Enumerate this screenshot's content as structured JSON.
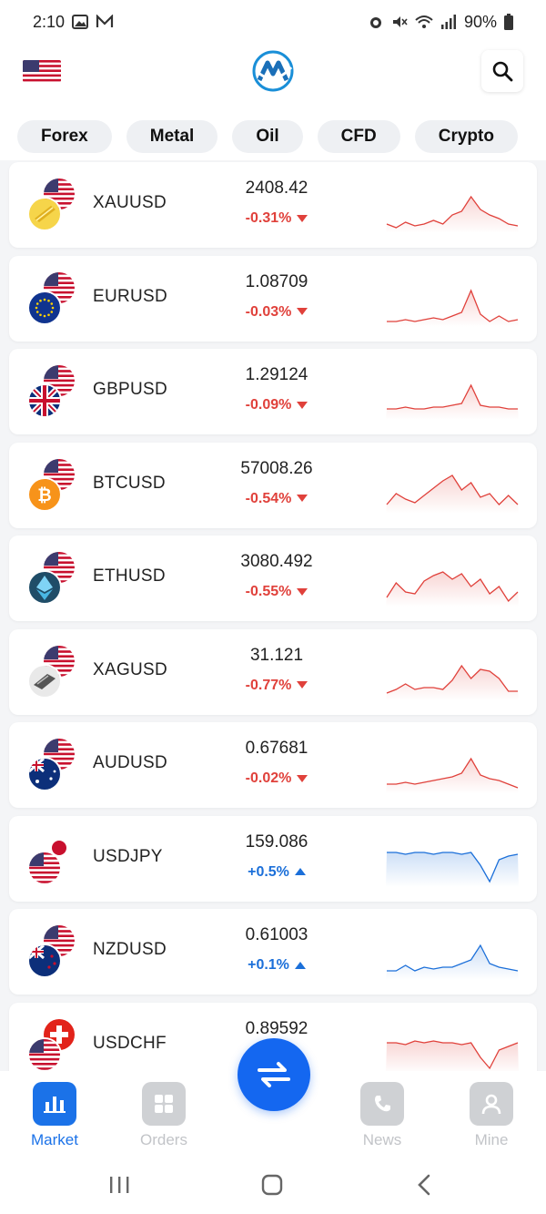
{
  "status_bar": {
    "time": "2:10",
    "battery": "90%"
  },
  "header": {
    "language_flag": "us-flag",
    "logo": "app-logo",
    "search_icon": "search-icon"
  },
  "tabs": [
    {
      "label": "Forex"
    },
    {
      "label": "Metal"
    },
    {
      "label": "Oil"
    },
    {
      "label": "CFD"
    },
    {
      "label": "Crypto"
    }
  ],
  "quotes": [
    {
      "symbol": "XAUUSD",
      "price": "2408.42",
      "change": "-0.31%",
      "direction": "down",
      "icon_back": "us-flag",
      "icon_front": "gold-icon",
      "spark": [
        18,
        20,
        17,
        19,
        18,
        16,
        18,
        13,
        11,
        3,
        10,
        13,
        15,
        18,
        19
      ]
    },
    {
      "symbol": "EURUSD",
      "price": "1.08709",
      "change": "-0.03%",
      "direction": "down",
      "icon_back": "us-flag",
      "icon_front": "eu-flag",
      "spark": [
        20,
        20,
        19,
        20,
        19,
        18,
        19,
        17,
        15,
        3,
        16,
        20,
        17,
        20,
        19
      ]
    },
    {
      "symbol": "GBPUSD",
      "price": "1.29124",
      "change": "-0.09%",
      "direction": "down",
      "icon_back": "us-flag",
      "icon_front": "uk-flag",
      "spark": [
        17,
        17,
        16,
        17,
        17,
        16,
        16,
        15,
        14,
        4,
        15,
        16,
        16,
        17,
        17
      ]
    },
    {
      "symbol": "BTCUSD",
      "price": "57008.26",
      "change": "-0.54%",
      "direction": "down",
      "icon_back": "us-flag",
      "icon_front": "bitcoin-icon",
      "spark": [
        18,
        12,
        15,
        17,
        13,
        9,
        5,
        2,
        10,
        6,
        14,
        12,
        18,
        13,
        18
      ]
    },
    {
      "symbol": "ETHUSD",
      "price": "3080.492",
      "change": "-0.55%",
      "direction": "down",
      "icon_back": "us-flag",
      "icon_front": "ethereum-icon",
      "spark": [
        18,
        10,
        15,
        16,
        9,
        6,
        4,
        8,
        5,
        12,
        8,
        16,
        12,
        20,
        15
      ]
    },
    {
      "symbol": "XAGUSD",
      "price": "31.121",
      "change": "-0.77%",
      "direction": "down",
      "icon_back": "us-flag",
      "icon_front": "silver-icon",
      "spark": [
        19,
        17,
        14,
        17,
        16,
        16,
        17,
        12,
        4,
        11,
        6,
        7,
        11,
        18,
        18
      ]
    },
    {
      "symbol": "AUDUSD",
      "price": "0.67681",
      "change": "-0.02%",
      "direction": "down",
      "icon_back": "us-flag",
      "icon_front": "au-flag",
      "spark": [
        18,
        18,
        17,
        18,
        17,
        16,
        15,
        14,
        12,
        4,
        13,
        15,
        16,
        18,
        20
      ]
    },
    {
      "symbol": "USDJPY",
      "price": "159.086",
      "change": "+0.5%",
      "direction": "up",
      "icon_back": "jp-flag",
      "icon_front": "us-flag",
      "spark": [
        4,
        4,
        5,
        4,
        4,
        5,
        4,
        4,
        5,
        4,
        11,
        20,
        8,
        6,
        5
      ]
    },
    {
      "symbol": "NZDUSD",
      "price": "0.61003",
      "change": "+0.1%",
      "direction": "up",
      "icon_back": "us-flag",
      "icon_front": "nz-flag",
      "spark": [
        18,
        18,
        15,
        18,
        16,
        17,
        16,
        16,
        14,
        12,
        4,
        14,
        16,
        17,
        18
      ]
    },
    {
      "symbol": "USDCHF",
      "price": "0.89592",
      "change": "",
      "direction": "down",
      "icon_back": "ch-flag",
      "icon_front": "us-flag",
      "spark": [
        6,
        6,
        7,
        5,
        6,
        5,
        6,
        6,
        7,
        6,
        14,
        20,
        10,
        8,
        6
      ]
    }
  ],
  "bottom_nav": [
    {
      "label": "Market",
      "icon": "bar-chart-icon",
      "active": true
    },
    {
      "label": "Orders",
      "icon": "grid-icon",
      "active": false
    },
    {
      "label": "News",
      "icon": "phone-icon",
      "active": false
    },
    {
      "label": "Mine",
      "icon": "user-icon",
      "active": false
    }
  ],
  "fab_icon": "swap-arrows-icon",
  "colors": {
    "accent": "#1b72e8",
    "down": "#e0413b",
    "up": "#1b6fd9"
  }
}
